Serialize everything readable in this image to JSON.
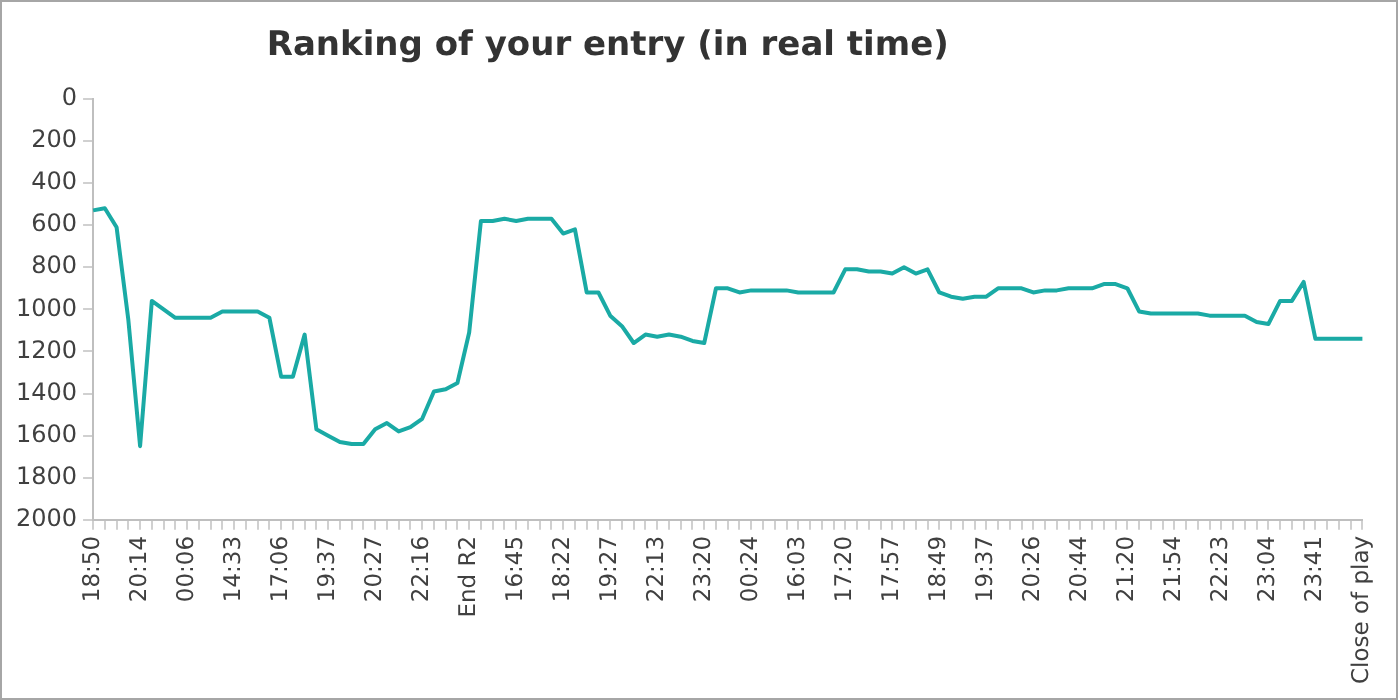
{
  "chart_data": {
    "type": "line",
    "title": "Ranking of your entry (in real time)",
    "categories": [
      "18:50",
      null,
      null,
      null,
      "20:14",
      null,
      null,
      null,
      "00:06",
      null,
      null,
      null,
      "14:33",
      null,
      null,
      null,
      "17:06",
      null,
      null,
      null,
      "19:37",
      null,
      null,
      null,
      "20:27",
      null,
      null,
      null,
      "22:16",
      null,
      null,
      null,
      "End R2",
      null,
      null,
      null,
      "16:45",
      null,
      null,
      null,
      "18:22",
      null,
      null,
      null,
      "19:27",
      null,
      null,
      null,
      "22:13",
      null,
      null,
      null,
      "23:20",
      null,
      null,
      null,
      "00:24",
      null,
      null,
      null,
      "16:03",
      null,
      null,
      null,
      "17:20",
      null,
      null,
      null,
      "17:57",
      null,
      null,
      null,
      "18:49",
      null,
      null,
      null,
      "19:37",
      null,
      null,
      null,
      "20:26",
      null,
      null,
      null,
      "20:44",
      null,
      null,
      null,
      "21:20",
      null,
      null,
      null,
      "21:54",
      null,
      null,
      null,
      "22:23",
      null,
      null,
      null,
      "23:04",
      null,
      null,
      null,
      "23:41",
      null,
      null,
      null,
      "Close of play"
    ],
    "series": [
      {
        "color": "#1aaaa5",
        "values": [
          530,
          520,
          610,
          1050,
          1650,
          960,
          1000,
          1040,
          1040,
          1040,
          1040,
          1010,
          1010,
          1010,
          1010,
          1040,
          1320,
          1320,
          1120,
          1570,
          1600,
          1630,
          1640,
          1640,
          1570,
          1540,
          1580,
          1560,
          1520,
          1390,
          1380,
          1350,
          1110,
          580,
          580,
          570,
          580,
          570,
          570,
          570,
          640,
          620,
          920,
          920,
          1030,
          1080,
          1160,
          1120,
          1130,
          1120,
          1130,
          1150,
          1160,
          900,
          900,
          920,
          910,
          910,
          910,
          910,
          920,
          920,
          920,
          920,
          810,
          810,
          820,
          820,
          830,
          800,
          830,
          810,
          920,
          940,
          950,
          940,
          940,
          900,
          900,
          900,
          920,
          910,
          910,
          900,
          900,
          900,
          880,
          880,
          900,
          1010,
          1020,
          1020,
          1020,
          1020,
          1020,
          1030,
          1030,
          1030,
          1030,
          1060,
          1070,
          960,
          960,
          870,
          1140,
          1140,
          1140,
          1140,
          1140
        ]
      }
    ],
    "ylim": [
      2000,
      0
    ],
    "yticks": [
      0,
      200,
      400,
      600,
      800,
      1000,
      1200,
      1400,
      1600,
      1800,
      2000
    ],
    "marker": "none",
    "line_style": "solid",
    "legend": false
  }
}
